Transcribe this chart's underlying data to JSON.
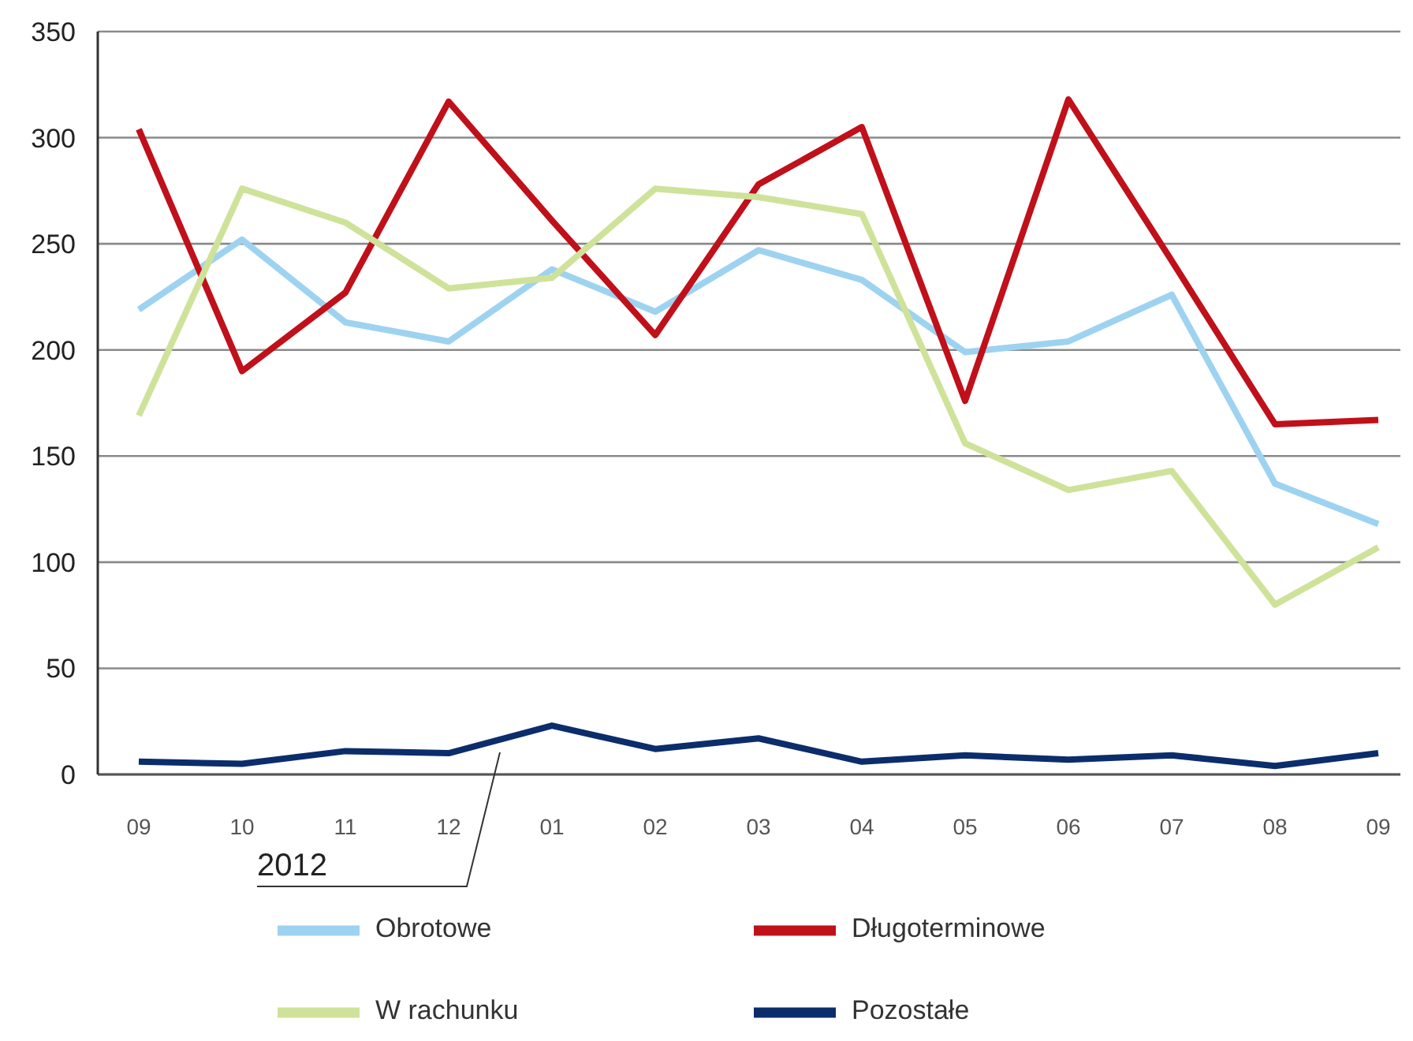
{
  "chart_data": {
    "type": "line",
    "categories": [
      "09",
      "10",
      "11",
      "12",
      "01",
      "02",
      "03",
      "04",
      "05",
      "06",
      "07",
      "08",
      "09"
    ],
    "series": [
      {
        "name": "Obrotowe",
        "color": "#9dd3f0",
        "values": [
          219,
          252,
          213,
          204,
          238,
          218,
          247,
          233,
          199,
          204,
          226,
          137,
          118
        ]
      },
      {
        "name": "Długoterminowe",
        "color": "#c0101a",
        "values": [
          304,
          190,
          227,
          317,
          261,
          207,
          278,
          305,
          176,
          318,
          242,
          165,
          167
        ]
      },
      {
        "name": "W rachunku",
        "color": "#cfe29a",
        "values": [
          169,
          276,
          260,
          229,
          234,
          276,
          272,
          264,
          156,
          134,
          143,
          80,
          107
        ]
      },
      {
        "name": "Pozostałe",
        "color": "#0c2d6b",
        "values": [
          6,
          5,
          11,
          10,
          23,
          12,
          17,
          6,
          9,
          7,
          9,
          4,
          10
        ]
      }
    ],
    "ylim": [
      0,
      350
    ],
    "yticks": [
      0,
      50,
      100,
      150,
      200,
      250,
      300,
      350
    ],
    "grid": "y",
    "legend": "bottom",
    "marker": "none",
    "line_style": "solid",
    "annotations": [
      "2012"
    ]
  }
}
